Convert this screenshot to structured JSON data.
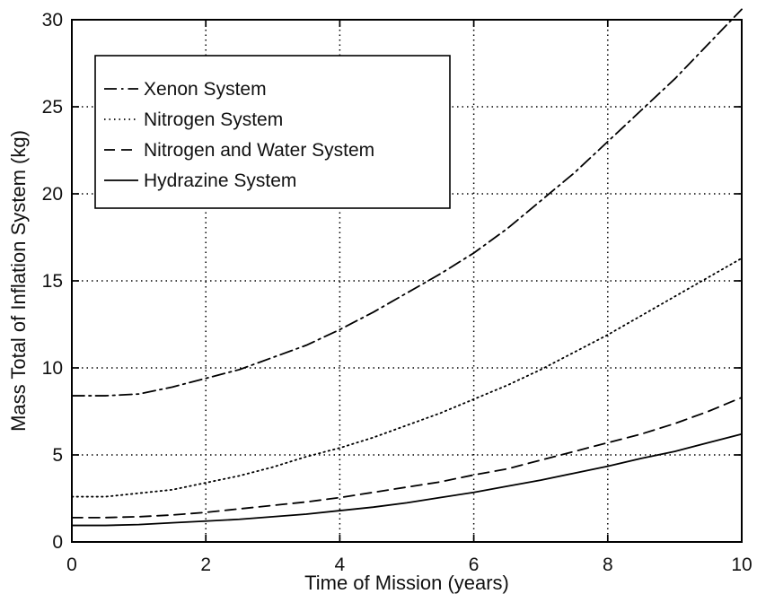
{
  "chart_data": {
    "type": "line",
    "title": "",
    "xlabel": "Time of Mission (years)",
    "ylabel": "Mass Total of Inflation System (kg)",
    "xlim": [
      0,
      10
    ],
    "ylim": [
      0,
      30
    ],
    "xticks": [
      0,
      2,
      4,
      6,
      8,
      10
    ],
    "yticks": [
      0,
      5,
      10,
      15,
      20,
      25,
      30
    ],
    "xtick_labels": [
      "0",
      "2",
      "4",
      "6",
      "8",
      "10"
    ],
    "ytick_labels": [
      "0",
      "5",
      "10",
      "15",
      "20",
      "25",
      "30"
    ],
    "grid": true,
    "grid_style": "dotted",
    "legend_position": "top-left",
    "x": [
      0,
      0.5,
      1,
      1.5,
      2,
      2.5,
      3,
      3.5,
      4,
      4.5,
      5,
      5.5,
      6,
      6.5,
      7,
      7.5,
      8,
      8.5,
      9,
      9.5,
      10
    ],
    "series": [
      {
        "name": "Xenon System",
        "line_style": "dashdot",
        "color": "#000000",
        "values": [
          8.4,
          8.4,
          8.5,
          8.9,
          9.4,
          9.9,
          10.6,
          11.3,
          12.2,
          13.2,
          14.3,
          15.4,
          16.6,
          18.0,
          19.6,
          21.2,
          23.0,
          24.8,
          26.6,
          28.6,
          30.6
        ]
      },
      {
        "name": "Nitrogen System",
        "line_style": "dotted",
        "color": "#000000",
        "values": [
          2.6,
          2.6,
          2.8,
          3.0,
          3.4,
          3.8,
          4.3,
          4.9,
          5.4,
          6.0,
          6.7,
          7.4,
          8.2,
          9.0,
          9.9,
          10.9,
          11.9,
          13.0,
          14.1,
          15.2,
          16.3
        ]
      },
      {
        "name": "Nitrogen and Water System",
        "line_style": "dashed",
        "color": "#000000",
        "values": [
          1.4,
          1.4,
          1.45,
          1.55,
          1.7,
          1.9,
          2.1,
          2.3,
          2.55,
          2.85,
          3.15,
          3.45,
          3.85,
          4.2,
          4.7,
          5.2,
          5.7,
          6.2,
          6.8,
          7.5,
          8.3
        ]
      },
      {
        "name": "Hydrazine System",
        "line_style": "solid",
        "color": "#000000",
        "values": [
          0.95,
          0.95,
          1.0,
          1.1,
          1.2,
          1.3,
          1.45,
          1.6,
          1.8,
          2.0,
          2.25,
          2.55,
          2.85,
          3.2,
          3.55,
          3.95,
          4.35,
          4.8,
          5.2,
          5.7,
          6.2
        ]
      }
    ]
  }
}
